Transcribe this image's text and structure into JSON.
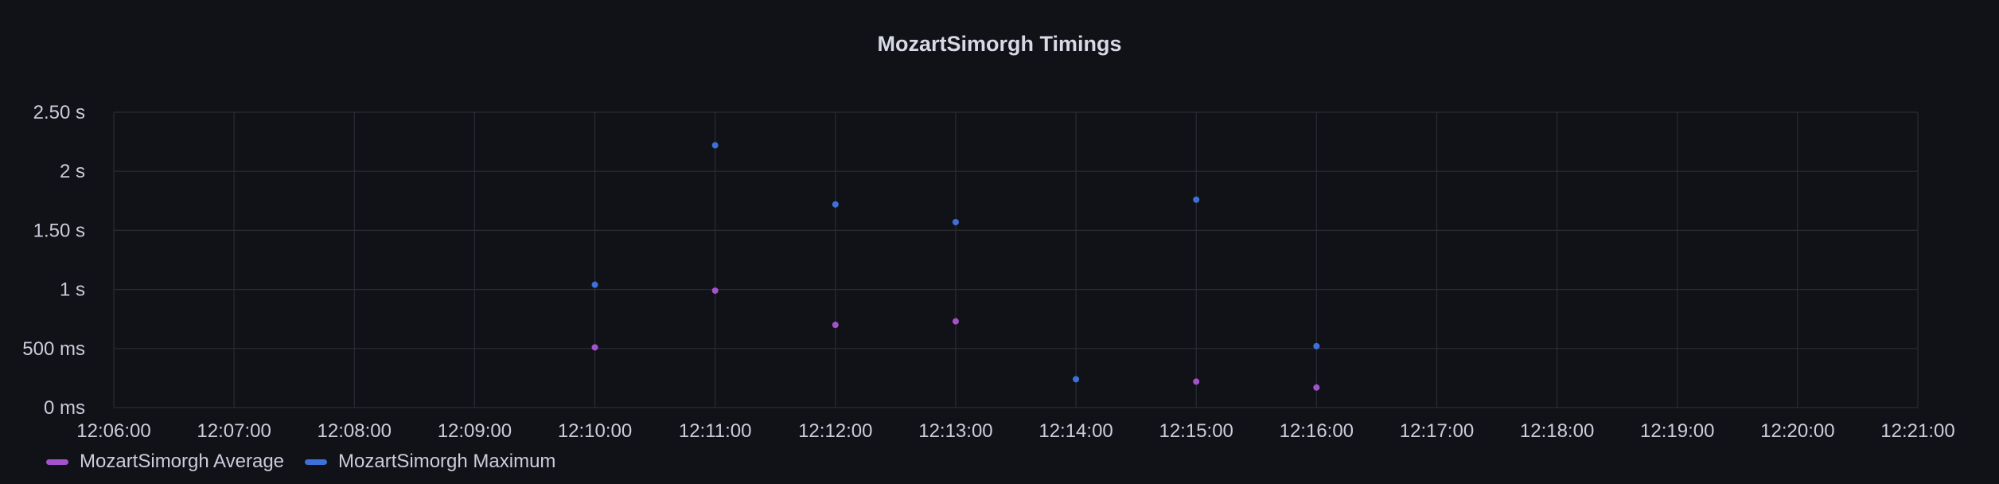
{
  "chart_data": {
    "type": "scatter",
    "title": "MozartSimorgh Timings",
    "xlabel": "",
    "ylabel": "",
    "x_ticks": [
      "12:06:00",
      "12:07:00",
      "12:08:00",
      "12:09:00",
      "12:10:00",
      "12:11:00",
      "12:12:00",
      "12:13:00",
      "12:14:00",
      "12:15:00",
      "12:16:00",
      "12:17:00",
      "12:18:00",
      "12:19:00",
      "12:20:00",
      "12:21:00"
    ],
    "y_ticks": [
      {
        "value": 0,
        "label": "0 ms"
      },
      {
        "value": 0.5,
        "label": "500 ms"
      },
      {
        "value": 1,
        "label": "1 s"
      },
      {
        "value": 1.5,
        "label": "1.50 s"
      },
      {
        "value": 2,
        "label": "2 s"
      },
      {
        "value": 2.5,
        "label": "2.50 s"
      }
    ],
    "xlim": [
      "12:06:00",
      "12:21:00"
    ],
    "ylim": [
      0,
      2.5
    ],
    "y_unit": "s",
    "grid": true,
    "legend_position": "bottom-left",
    "series": [
      {
        "name": "MozartSimorgh Average",
        "color": "#a352cc",
        "points": [
          {
            "x": "12:10:00",
            "y": 0.51
          },
          {
            "x": "12:11:00",
            "y": 0.99
          },
          {
            "x": "12:12:00",
            "y": 0.7
          },
          {
            "x": "12:13:00",
            "y": 0.73
          },
          {
            "x": "12:15:00",
            "y": 0.22
          },
          {
            "x": "12:16:00",
            "y": 0.17
          }
        ]
      },
      {
        "name": "MozartSimorgh Maximum",
        "color": "#3d71d9",
        "points": [
          {
            "x": "12:10:00",
            "y": 1.04
          },
          {
            "x": "12:11:00",
            "y": 2.22
          },
          {
            "x": "12:12:00",
            "y": 1.72
          },
          {
            "x": "12:13:00",
            "y": 1.57
          },
          {
            "x": "12:14:00",
            "y": 0.24
          },
          {
            "x": "12:15:00",
            "y": 1.76
          },
          {
            "x": "12:16:00",
            "y": 0.52
          }
        ]
      }
    ]
  }
}
